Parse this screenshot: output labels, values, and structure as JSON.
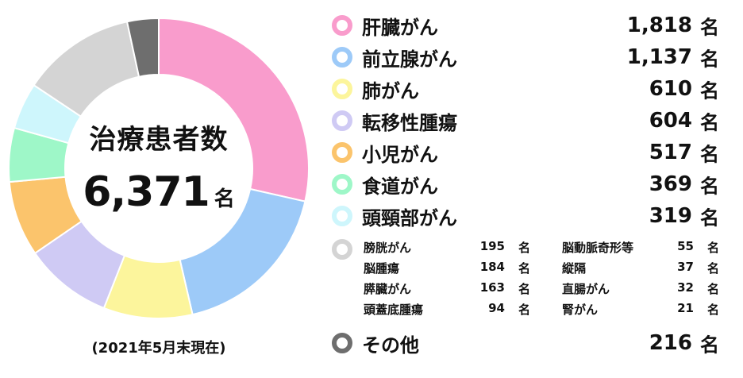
{
  "chart_data": {
    "type": "pie",
    "style": "donut",
    "center": {
      "title": "治療患者数",
      "value": "6,371",
      "unit": "名"
    },
    "note": "(2021年5月末現在)",
    "series": [
      {
        "name": "肝臓がん",
        "value": 1818,
        "display": "1,818",
        "unit": "名",
        "color": "#f99ccc"
      },
      {
        "name": "前立腺がん",
        "value": 1137,
        "display": "1,137",
        "unit": "名",
        "color": "#9dcaf8"
      },
      {
        "name": "肺がん",
        "value": 610,
        "display": "610",
        "unit": "名",
        "color": "#fcf59c"
      },
      {
        "name": "転移性腫瘍",
        "value": 604,
        "display": "604",
        "unit": "名",
        "color": "#cfcaf4"
      },
      {
        "name": "小児がん",
        "value": 517,
        "display": "517",
        "unit": "名",
        "color": "#fbc46c"
      },
      {
        "name": "食道がん",
        "value": 369,
        "display": "369",
        "unit": "名",
        "color": "#9ef7c8"
      },
      {
        "name": "頭頸部がん",
        "value": 319,
        "display": "319",
        "unit": "名",
        "color": "#cef6fc"
      },
      {
        "name": "minor-group",
        "value": 781,
        "color": "#d4d4d4"
      },
      {
        "name": "その他",
        "value": 216,
        "display": "216",
        "unit": "名",
        "color": "#6e6e6e"
      }
    ],
    "minor_group": {
      "color": "#d4d4d4",
      "items": [
        {
          "name": "膀胱がん",
          "value": 195,
          "unit": "名"
        },
        {
          "name": "脳腫瘍",
          "value": 184,
          "unit": "名"
        },
        {
          "name": "膵臓がん",
          "value": 163,
          "unit": "名"
        },
        {
          "name": "頭蓋底腫瘍",
          "value": 94,
          "unit": "名"
        },
        {
          "name": "脳動脈奇形等",
          "value": 55,
          "unit": "名"
        },
        {
          "name": "縦隔",
          "value": 37,
          "unit": "名"
        },
        {
          "name": "直腸がん",
          "value": 32,
          "unit": "名"
        },
        {
          "name": "腎がん",
          "value": 21,
          "unit": "名"
        }
      ]
    }
  }
}
